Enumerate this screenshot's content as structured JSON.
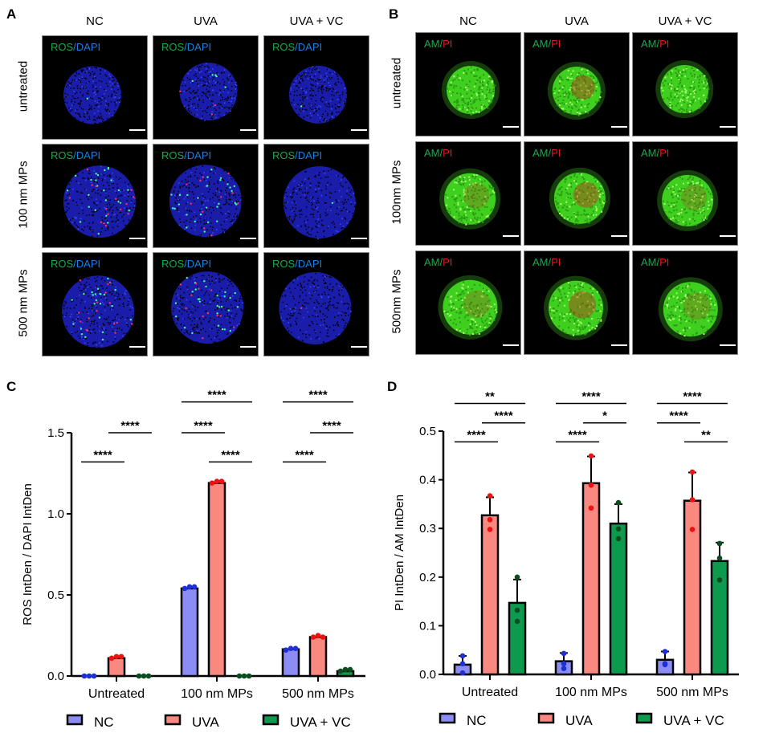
{
  "panel_a": {
    "label": "A",
    "columns": [
      "NC",
      "UVA",
      "UVA + VC"
    ],
    "rows": [
      "untreated",
      "100 nm MPs",
      "500 nm MPs"
    ],
    "stain_green": "ROS",
    "stain_sep": "/",
    "stain_second": "DAPI"
  },
  "panel_b": {
    "label": "B",
    "columns": [
      "NC",
      "UVA",
      "UVA + VC"
    ],
    "rows": [
      "untreated",
      "100nm MPs",
      "500nm MPs"
    ],
    "stain_green": "AM",
    "stain_sep": "/",
    "stain_second": "PI"
  },
  "colors": {
    "NC": "#8c8cf5",
    "UVA": "#f88880",
    "UVA + VC": "#0d9a4f",
    "NC_dot": "#1f2fd6",
    "UVA_dot": "#ee1111",
    "VC_dot": "#0b4d1e"
  },
  "chart_data": [
    {
      "panel": "C",
      "type": "bar",
      "ylabel": "ROS IntDen / DAPI IntDen",
      "categories": [
        "Untreated",
        "100 nm MPs",
        "500 nm MPs"
      ],
      "yticks": [
        "0.0",
        "0.5",
        "1.0",
        "1.5"
      ],
      "ylim": [
        0,
        1.5
      ],
      "legend": [
        "NC",
        "UVA",
        "UVA + VC"
      ],
      "legend_position": "bottom",
      "series": [
        {
          "name": "NC",
          "values": [
            0.0,
            0.54,
            0.165
          ],
          "sd": [
            0,
            0.005,
            0.005
          ],
          "points": [
            [
              0,
              0,
              0
            ],
            [
              0.54,
              0.55,
              0.55
            ],
            [
              0.16,
              0.17,
              0.17
            ]
          ]
        },
        {
          "name": "UVA",
          "values": [
            0.11,
            1.19,
            0.24
          ],
          "sd": [
            0.005,
            0.005,
            0.005
          ],
          "points": [
            [
              0.11,
              0.12,
              0.12
            ],
            [
              1.19,
              1.2,
              1.2
            ],
            [
              0.24,
              0.25,
              0.24
            ]
          ]
        },
        {
          "name": "UVA + VC",
          "values": [
            0.0,
            0.0,
            0.03
          ],
          "sd": [
            0,
            0,
            0.005
          ],
          "points": [
            [
              0,
              0,
              0
            ],
            [
              0,
              0,
              0
            ],
            [
              0.03,
              0.04,
              0.04
            ]
          ]
        }
      ],
      "significance": [
        {
          "group": 0,
          "from": 0,
          "to": 1,
          "y": 1.32,
          "label": "****"
        },
        {
          "group": 0,
          "from": 1,
          "to": 2,
          "y": 1.5,
          "label": "****"
        },
        {
          "group": 1,
          "from": 0,
          "to": 2,
          "y": 1.69,
          "label": "****"
        },
        {
          "group": 1,
          "from": 0,
          "to": 1,
          "y": 1.5,
          "label": "****"
        },
        {
          "group": 1,
          "from": 1,
          "to": 2,
          "y": 1.32,
          "label": "****"
        },
        {
          "group": 2,
          "from": 0,
          "to": 2,
          "y": 1.69,
          "label": "****"
        },
        {
          "group": 2,
          "from": 1,
          "to": 2,
          "y": 1.5,
          "label": "****"
        },
        {
          "group": 2,
          "from": 0,
          "to": 1,
          "y": 1.32,
          "label": "****"
        }
      ]
    },
    {
      "panel": "D",
      "type": "bar",
      "ylabel": "PI IntDen / AM IntDen",
      "categories": [
        "Untreated",
        "100 nm MPs",
        "500 nm MPs"
      ],
      "yticks": [
        "0.0",
        "0.1",
        "0.2",
        "0.3",
        "0.4",
        "0.5"
      ],
      "ylim": [
        0,
        0.5
      ],
      "legend": [
        "NC",
        "UVA",
        "UVA + VC"
      ],
      "legend_position": "bottom",
      "series": [
        {
          "name": "NC",
          "values": [
            0.02,
            0.027,
            0.03
          ],
          "sd": [
            0.018,
            0.017,
            0.017
          ],
          "points": [
            [
              0.038,
              0.022,
              0.003
            ],
            [
              0.043,
              0.022,
              0.012
            ],
            [
              0.047,
              0.022,
              0.02
            ]
          ]
        },
        {
          "name": "UVA",
          "values": [
            0.327,
            0.393,
            0.357
          ],
          "sd": [
            0.037,
            0.055,
            0.058
          ],
          "points": [
            [
              0.367,
              0.318,
              0.298
            ],
            [
              0.449,
              0.389,
              0.342
            ],
            [
              0.416,
              0.359,
              0.298
            ]
          ]
        },
        {
          "name": "UVA + VC",
          "values": [
            0.147,
            0.31,
            0.233
          ],
          "sd": [
            0.048,
            0.04,
            0.038
          ],
          "points": [
            [
              0.2,
              0.132,
              0.109
            ],
            [
              0.353,
              0.299,
              0.279
            ],
            [
              0.269,
              0.239,
              0.194
            ]
          ]
        }
      ],
      "significance": [
        {
          "group": 0,
          "from": 0,
          "to": 2,
          "y": 0.557,
          "label": "**"
        },
        {
          "group": 0,
          "from": 1,
          "to": 2,
          "y": 0.517,
          "label": "****"
        },
        {
          "group": 0,
          "from": 0,
          "to": 1,
          "y": 0.478,
          "label": "****"
        },
        {
          "group": 1,
          "from": 0,
          "to": 2,
          "y": 0.557,
          "label": "****"
        },
        {
          "group": 1,
          "from": 1,
          "to": 2,
          "y": 0.517,
          "label": "*"
        },
        {
          "group": 1,
          "from": 0,
          "to": 1,
          "y": 0.478,
          "label": "****"
        },
        {
          "group": 2,
          "from": 0,
          "to": 2,
          "y": 0.557,
          "label": "****"
        },
        {
          "group": 2,
          "from": 0,
          "to": 1,
          "y": 0.517,
          "label": "****"
        },
        {
          "group": 2,
          "from": 1,
          "to": 2,
          "y": 0.478,
          "label": "**"
        }
      ]
    }
  ]
}
